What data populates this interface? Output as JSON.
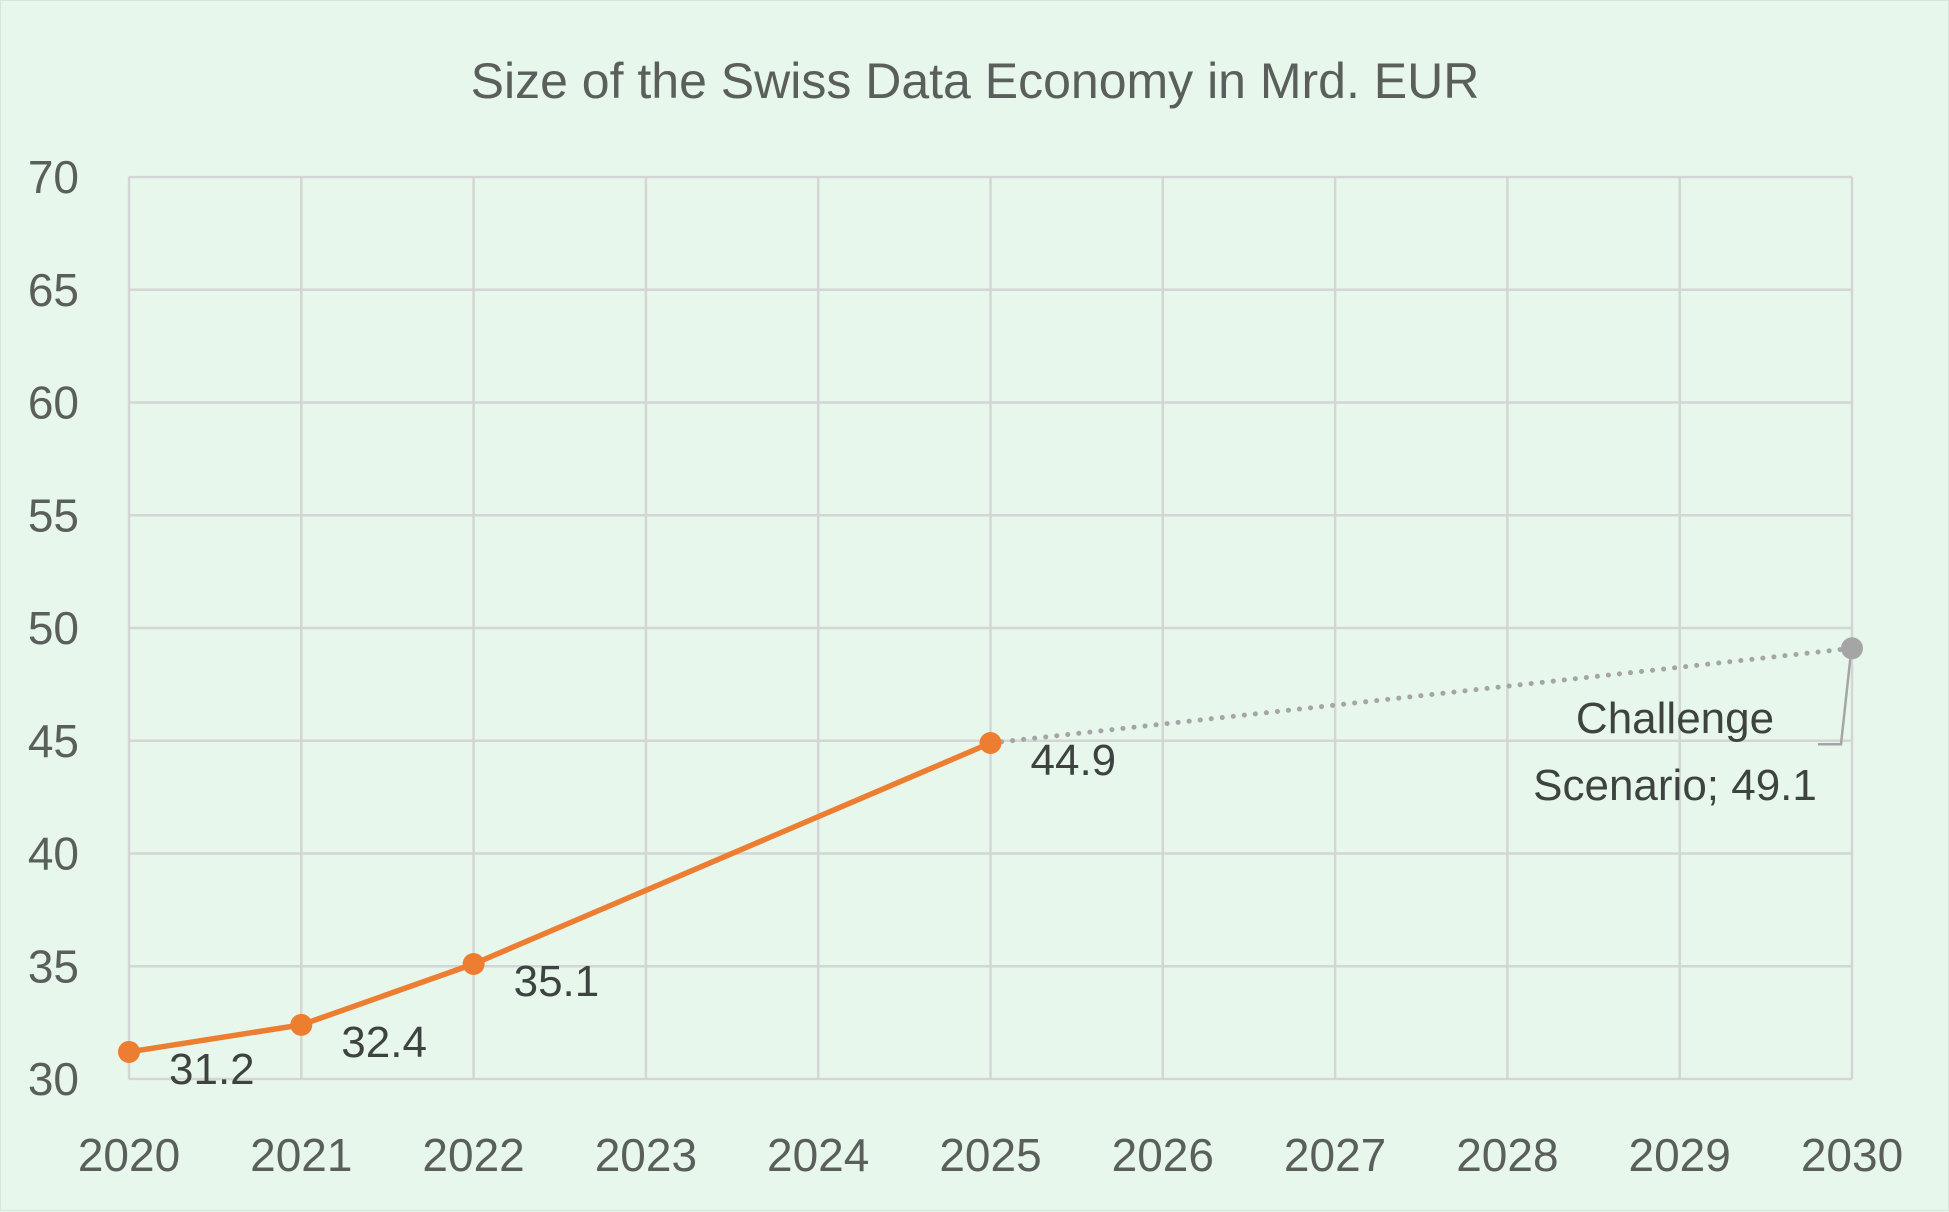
{
  "chart_data": {
    "type": "line",
    "title": "Size of the Swiss Data Economy in Mrd. EUR",
    "xlabel": "",
    "ylabel": "",
    "x_categories": [
      "2020",
      "2021",
      "2022",
      "2023",
      "2024",
      "2025",
      "2026",
      "2027",
      "2028",
      "2029",
      "2030"
    ],
    "y_ticks": [
      "70",
      "65",
      "60",
      "55",
      "50",
      "45",
      "40",
      "35",
      "30"
    ],
    "ylim": [
      30,
      70
    ],
    "grid": true,
    "legend": "none",
    "series": [
      {
        "points": [
          {
            "x": "2020",
            "y": 31.2,
            "label": "31.2"
          },
          {
            "x": "2021",
            "y": 32.4,
            "label": "32.4"
          },
          {
            "x": "2022",
            "y": 35.1,
            "label": "35.1"
          },
          {
            "x": "2025",
            "y": 44.9,
            "label": "44.9"
          }
        ],
        "color": "#ed7d31",
        "style": "solid"
      },
      {
        "points": [
          {
            "x": "2025",
            "y": 44.9
          },
          {
            "x": "2030",
            "y": 49.1
          }
        ],
        "color": "#a5a5a5",
        "style": "dotted"
      }
    ],
    "annotation": {
      "line1": "Challenge",
      "line2": "Scenario; 49.1"
    }
  }
}
